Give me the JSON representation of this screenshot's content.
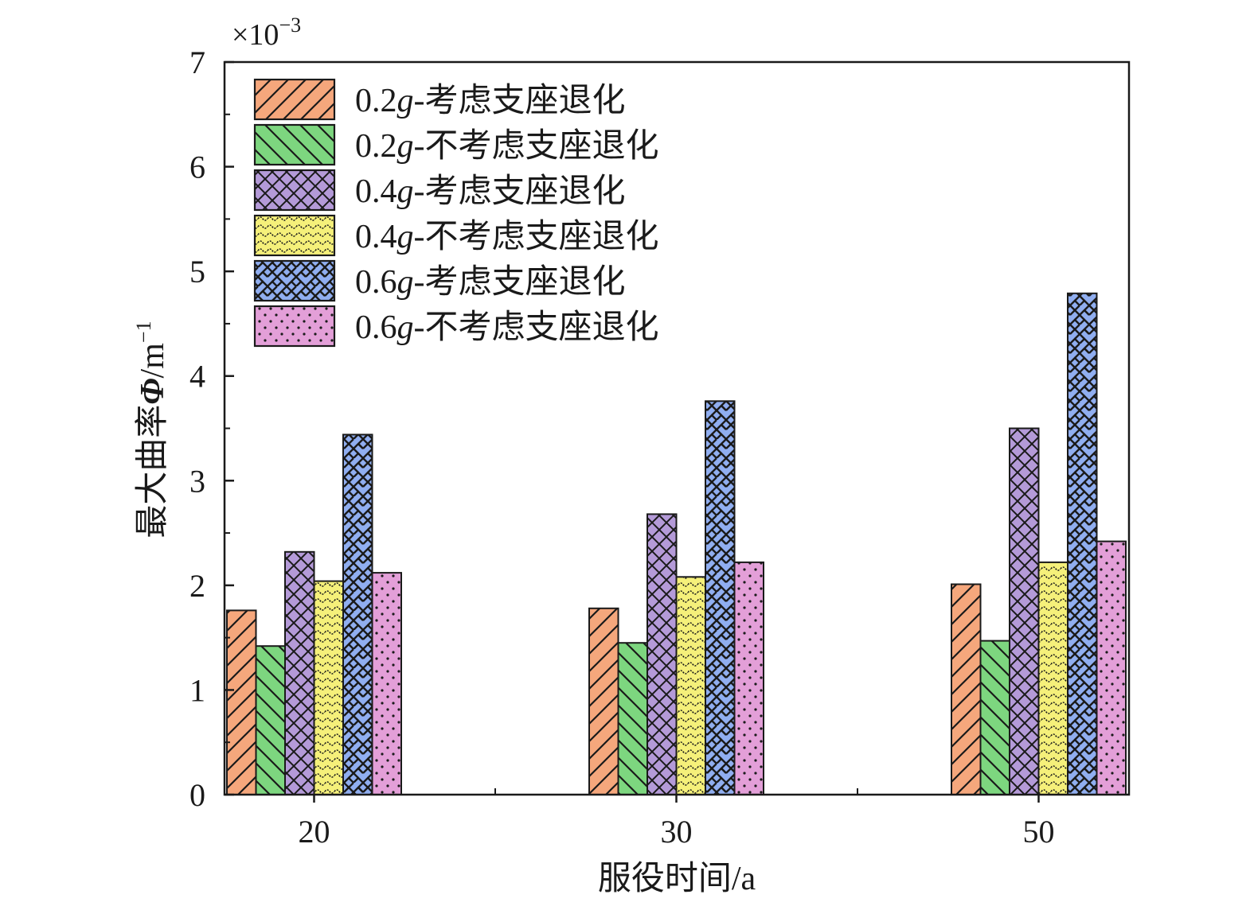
{
  "chart_data": {
    "type": "bar",
    "categories": [
      "20",
      "30",
      "50"
    ],
    "xlabel": "服役时间/a",
    "ylabel_prefix": "最大曲率",
    "ylabel_symbol": "Φ",
    "ylabel_unit": "/m",
    "ylabel_unit_exp": "−1",
    "y_multiplier_base": "×10",
    "y_multiplier_exp": "−3",
    "ylim": [
      0,
      7
    ],
    "yticks": [
      "0",
      "1",
      "2",
      "3",
      "4",
      "5",
      "6",
      "7"
    ],
    "grid": false,
    "legend_position": "top-left",
    "series": [
      {
        "name": "0.2g-考虑支座退化",
        "name_num": "0.2",
        "name_g": "g",
        "name_rest": "-考虑支座退化",
        "color": "#f5a77c",
        "pattern": "diag-right",
        "values": [
          1.76,
          1.78,
          2.01
        ]
      },
      {
        "name": "0.2g-不考虑支座退化",
        "name_num": "0.2",
        "name_g": "g",
        "name_rest": "-不考虑支座退化",
        "color": "#7dd67f",
        "pattern": "diag-left",
        "values": [
          1.42,
          1.45,
          1.47
        ]
      },
      {
        "name": "0.4g-考虑支座退化",
        "name_num": "0.4",
        "name_g": "g",
        "name_rest": "-考虑支座退化",
        "color": "#b49ad8",
        "pattern": "crosshatch",
        "values": [
          2.32,
          2.68,
          3.5
        ]
      },
      {
        "name": "0.4g-不考虑支座退化",
        "name_num": "0.4",
        "name_g": "g",
        "name_rest": "-不考虑支座退化",
        "color": "#f5f07a",
        "pattern": "wave-dots",
        "values": [
          2.04,
          2.08,
          2.22
        ]
      },
      {
        "name": "0.6g-考虑支座退化",
        "name_num": "0.6",
        "name_g": "g",
        "name_rest": "-考虑支座退化",
        "color": "#90aef0",
        "pattern": "zigzag",
        "values": [
          3.44,
          3.76,
          4.79
        ]
      },
      {
        "name": "0.6g-不考虑支座退化",
        "name_num": "0.6",
        "name_g": "g",
        "name_rest": "-不考虑支座退化",
        "color": "#e39fd8",
        "pattern": "dots",
        "values": [
          2.12,
          2.22,
          2.42
        ]
      }
    ]
  }
}
